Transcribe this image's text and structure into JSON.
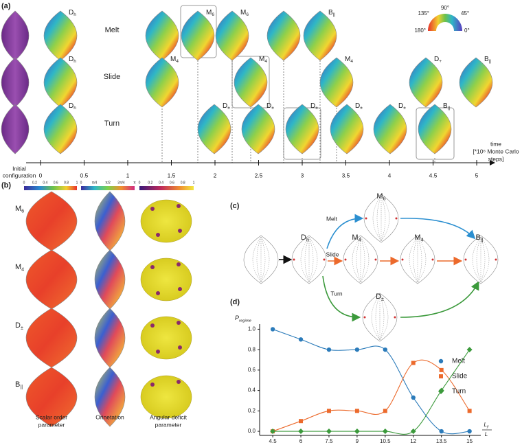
{
  "panel_a": {
    "label": "(a)",
    "rows": [
      "Melt",
      "Slide",
      "Turn"
    ],
    "initial_label": [
      "Initial",
      "configuration"
    ],
    "time_label": [
      "time",
      "[*10⁶ Monte Carlo",
      "steps]"
    ],
    "xlim": [
      -0.165,
      5.165
    ],
    "xticks": [
      0,
      0.5,
      1,
      1.5,
      2,
      2.5,
      3,
      3.5,
      4,
      4.5,
      5
    ],
    "colorbar_labels": [
      "90°",
      "135°",
      "45°",
      "180°",
      "0°"
    ],
    "state_labels": [
      [
        {
          "main": "D",
          "sub": "h"
        },
        {
          "main": "M",
          "sub": "6"
        },
        {
          "main": "M",
          "sub": "6"
        },
        {
          "main": "B",
          "sub": "||"
        }
      ],
      [
        {
          "main": "D",
          "sub": "h"
        },
        {
          "main": "M",
          "sub": "4"
        },
        {
          "main": "M",
          "sub": "4"
        },
        {
          "main": "M",
          "sub": "4"
        },
        {
          "main": "D",
          "sub": "+"
        },
        {
          "main": "B",
          "sub": "||"
        }
      ],
      [
        {
          "main": "D",
          "sub": "h"
        },
        {
          "main": "D",
          "sub": "±"
        },
        {
          "main": "D",
          "sub": "±"
        },
        {
          "main": "D",
          "sub": "±"
        },
        {
          "main": "D",
          "sub": "±"
        },
        {
          "main": "D",
          "sub": "±"
        },
        {
          "main": "B",
          "sub": "||"
        }
      ]
    ]
  },
  "panel_b": {
    "label": "(b)",
    "colorbars": [
      [
        "0",
        "0.2",
        "0.4",
        "0.6",
        "0.8",
        "1"
      ],
      [
        "0",
        "π/4",
        "π/2",
        "3π/4",
        "π"
      ],
      [
        "0",
        "0.2",
        "0.4",
        "0.6",
        "0.8",
        "1"
      ]
    ],
    "rows": [
      {
        "main": "M",
        "sub": "6"
      },
      {
        "main": "M",
        "sub": "4"
      },
      {
        "main": "D",
        "sub": "±"
      },
      {
        "main": "B",
        "sub": "||"
      }
    ],
    "captions": [
      [
        "Scalar order",
        "parameter"
      ],
      [
        "Orinetation"
      ],
      [
        "Angular deficit",
        "parameter"
      ]
    ]
  },
  "panel_c": {
    "label": "(c)",
    "nodes": [
      {
        "main": "D",
        "sub": "h"
      },
      {
        "main": "M",
        "sub": "6"
      },
      {
        "main": "M",
        "sub": "4"
      },
      {
        "main": "M",
        "sub": "4"
      },
      {
        "main": "D",
        "sub": "±"
      },
      {
        "main": "B",
        "sub": "||"
      }
    ],
    "edges": [
      "Melt",
      "Slide",
      "Turn"
    ]
  },
  "chart_data": {
    "type": "line",
    "label": "(d)",
    "y_label": {
      "main": "P",
      "sub": "regime"
    },
    "x_label": {
      "numerator": {
        "main": "L",
        "sub": "y"
      },
      "denominator": "L"
    },
    "x": [
      4.5,
      6,
      7.5,
      9,
      10.5,
      12,
      13.5,
      15
    ],
    "xlim": [
      3.8,
      15.6
    ],
    "xticks": [
      4.5,
      6,
      7.5,
      9,
      10.5,
      12,
      13.5,
      15
    ],
    "ylim": [
      -0.04,
      1.05
    ],
    "yticks": [
      {
        "value": 0,
        "label": "0.0"
      },
      {
        "value": 0.2,
        "label": "0.2"
      },
      {
        "value": 0.4,
        "label": "0.4"
      },
      {
        "value": 0.6,
        "label": "0.6"
      },
      {
        "value": 0.8,
        "label": "0.8"
      },
      {
        "value": 1,
        "label": "1.0"
      }
    ],
    "legend": "right",
    "series": [
      {
        "name": "Melt",
        "color": "#2b7bba",
        "marker": "circle",
        "values": [
          1.0,
          0.9,
          0.8,
          0.8,
          0.8,
          0.33,
          0.0,
          0.0
        ]
      },
      {
        "name": "Slide",
        "color": "#ec6a2c",
        "marker": "square",
        "values": [
          0.0,
          0.1,
          0.2,
          0.2,
          0.2,
          0.67,
          0.6,
          0.2
        ]
      },
      {
        "name": "Turn",
        "color": "#3c9a3c",
        "marker": "diamond",
        "values": [
          0.0,
          0.0,
          0.0,
          0.0,
          0.0,
          0.0,
          0.4,
          0.8
        ]
      }
    ]
  }
}
